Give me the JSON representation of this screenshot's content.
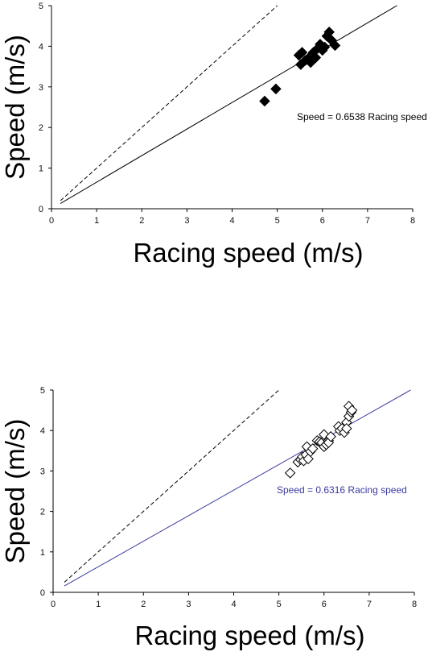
{
  "chart_data": [
    {
      "type": "scatter",
      "xlabel": "Racing speed (m/s)",
      "ylabel": "Speed (m/s)",
      "xlim": [
        0,
        8
      ],
      "ylim": [
        0,
        5
      ],
      "xticks": [
        "0",
        "1",
        "2",
        "3",
        "4",
        "5",
        "6",
        "7",
        "8"
      ],
      "yticks": [
        "0",
        "1",
        "2",
        "3",
        "4",
        "5"
      ],
      "marker": "filled-diamond",
      "fit_color": "#000000",
      "annotation": "Speed = 0.6538 Racing speed",
      "fit_line": {
        "slope": 0.6538,
        "x": [
          0.2,
          7.65
        ]
      },
      "identity_line": {
        "slope": 1,
        "x": [
          0.2,
          5.0
        ]
      },
      "series": [
        {
          "x": [
            4.72,
            4.97,
            5.48,
            5.52,
            5.55,
            5.62,
            5.7,
            5.74,
            5.8,
            5.85,
            5.9,
            5.95,
            6.0,
            6.05,
            6.1,
            6.15,
            6.2,
            6.28
          ],
          "y": [
            2.65,
            2.95,
            3.78,
            3.55,
            3.85,
            3.65,
            3.72,
            3.6,
            3.85,
            3.72,
            3.95,
            4.05,
            3.9,
            3.98,
            4.25,
            4.35,
            4.15,
            4.02
          ]
        }
      ]
    },
    {
      "type": "scatter",
      "xlabel": "Racing speed (m/s)",
      "ylabel": "Speed (m/s)",
      "xlim": [
        0,
        8
      ],
      "ylim": [
        0,
        5
      ],
      "xticks": [
        "0",
        "1",
        "2",
        "3",
        "4",
        "5",
        "6",
        "7",
        "8"
      ],
      "yticks": [
        "0",
        "1",
        "2",
        "3",
        "4",
        "5"
      ],
      "marker": "open-diamond",
      "fit_color": "#3a3aa0",
      "annotation": "Speed = 0.6316 Racing speed",
      "fit_line": {
        "slope": 0.6316,
        "x": [
          0.25,
          7.92
        ]
      },
      "identity_line": {
        "slope": 1,
        "x": [
          0.25,
          5.0
        ]
      },
      "series": [
        {
          "x": [
            5.25,
            5.42,
            5.48,
            5.52,
            5.55,
            5.6,
            5.62,
            5.65,
            5.7,
            5.75,
            5.85,
            5.9,
            5.95,
            6.0,
            6.05,
            6.1,
            6.0,
            6.05,
            6.1,
            6.15,
            6.32,
            6.35,
            6.4,
            6.45,
            6.5,
            6.55,
            6.6,
            6.55,
            6.62,
            6.5
          ],
          "y": [
            2.95,
            3.22,
            3.28,
            3.35,
            3.25,
            3.4,
            3.6,
            3.3,
            3.48,
            3.55,
            3.75,
            3.72,
            3.7,
            3.6,
            3.8,
            3.75,
            3.9,
            3.65,
            3.7,
            3.85,
            4.1,
            4.0,
            4.05,
            3.95,
            4.2,
            4.35,
            4.45,
            4.6,
            4.5,
            4.05
          ]
        }
      ]
    }
  ]
}
